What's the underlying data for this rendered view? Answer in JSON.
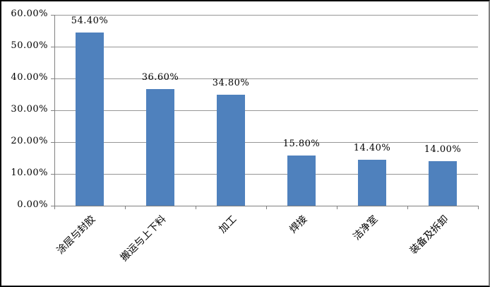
{
  "chart_data": {
    "type": "bar",
    "title": "",
    "categories": [
      "涂层与封胶",
      "搬运与上下料",
      "加工",
      "焊接",
      "洁净室",
      "装备及拆卸"
    ],
    "values": [
      54.4,
      36.6,
      34.8,
      15.8,
      14.4,
      14.0
    ],
    "data_labels": [
      "54.40%",
      "36.60%",
      "34.80%",
      "15.80%",
      "14.40%",
      "14.00%"
    ],
    "y_tick_labels": [
      "0.00%",
      "10.00%",
      "20.00%",
      "30.00%",
      "40.00%",
      "50.00%",
      "60.00%"
    ],
    "xlabel": "",
    "ylabel": "",
    "ylim": [
      0,
      60
    ],
    "y_step": 10,
    "grid": true,
    "legend": "none",
    "colors": {
      "bar": "#4F81BD",
      "gridline": "#969696",
      "axis": "#808080",
      "text": "#000000",
      "background": "#FFFFFF",
      "border": "#000000"
    }
  }
}
